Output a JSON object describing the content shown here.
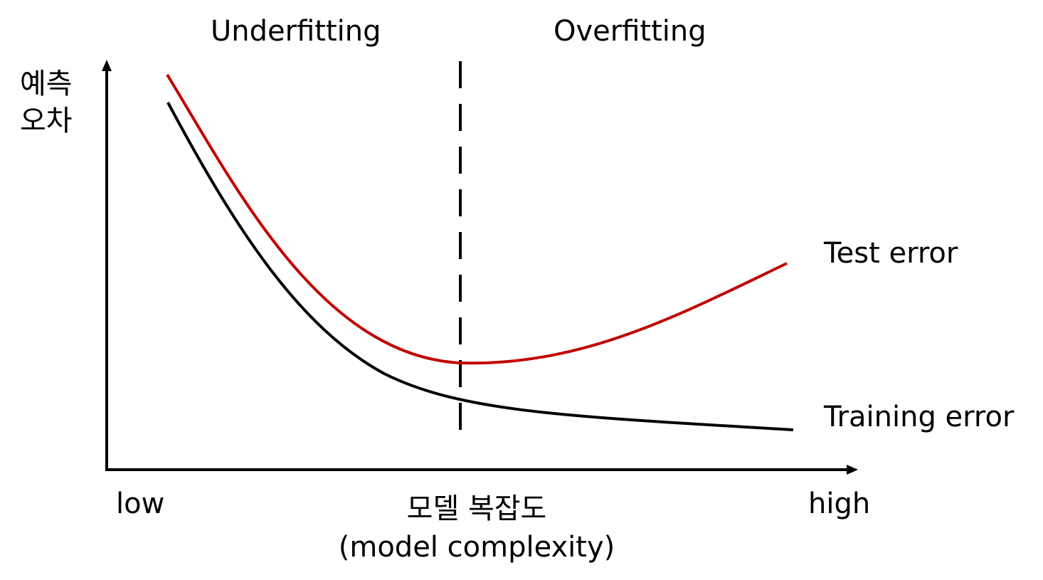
{
  "regions": {
    "underfitting": "Underfitting",
    "overfitting": "Overfitting"
  },
  "axes": {
    "y_label_line1": "예측",
    "y_label_line2": "오차",
    "x_label_korean": "모델 복잡도",
    "x_label_english": "(model complexity)",
    "x_low": "low",
    "x_high": "high"
  },
  "curves": {
    "test": {
      "label": "Test error",
      "color": "#c00000"
    },
    "training": {
      "label": "Training error",
      "color": "#000000"
    }
  }
}
